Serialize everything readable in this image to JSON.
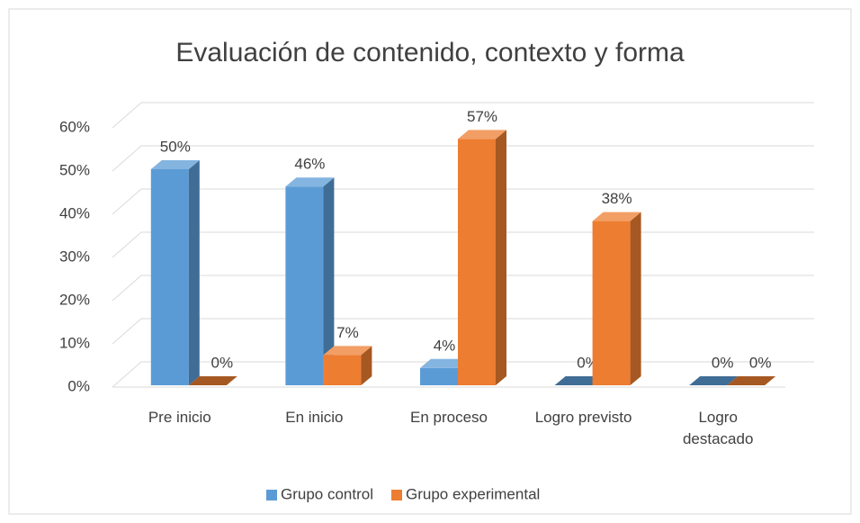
{
  "chart_data": {
    "type": "bar3d",
    "title": "Evaluación de contenido, contexto y forma",
    "categories": [
      "Pre inicio",
      "En inicio",
      "En proceso",
      "Logro previsto",
      "Logro destacado"
    ],
    "series": [
      {
        "name": "Grupo control",
        "color": "#5b9bd5",
        "values": [
          50,
          46,
          4,
          0,
          0
        ],
        "value_labels": [
          "50%",
          "46%",
          "4%",
          "0%",
          "0%"
        ]
      },
      {
        "name": "Grupo experimental",
        "color": "#ed7d31",
        "values": [
          0,
          7,
          57,
          38,
          0
        ],
        "value_labels": [
          "0%",
          "7%",
          "57%",
          "38%",
          "0%"
        ]
      }
    ],
    "ylim": [
      0,
      60
    ],
    "yticks": [
      {
        "value": 0,
        "label": "0%"
      },
      {
        "value": 10,
        "label": "10%"
      },
      {
        "value": 20,
        "label": "20%"
      },
      {
        "value": 30,
        "label": "30%"
      },
      {
        "value": 40,
        "label": "40%"
      },
      {
        "value": 50,
        "label": "50%"
      },
      {
        "value": 60,
        "label": "60%"
      }
    ],
    "grid": true,
    "legend": "bottom"
  }
}
